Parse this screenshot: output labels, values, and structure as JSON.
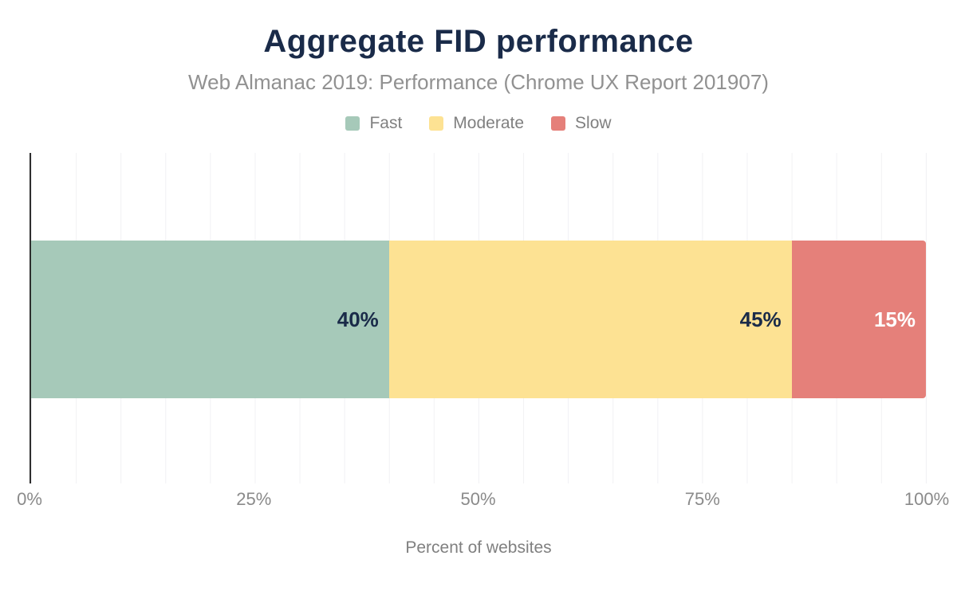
{
  "chart_data": {
    "type": "bar",
    "orientation": "horizontal",
    "stacked": true,
    "title": "Aggregate FID performance",
    "subtitle": "Web Almanac 2019: Performance (Chrome UX Report 201907)",
    "xlabel": "Percent of websites",
    "categories": [
      "Aggregate FID"
    ],
    "series": [
      {
        "name": "Fast",
        "values": [
          40
        ],
        "data_label": "40%",
        "color": "#a6c9b9",
        "label_color": "#1a2b49"
      },
      {
        "name": "Moderate",
        "values": [
          45
        ],
        "data_label": "45%",
        "color": "#fde293",
        "label_color": "#1a2b49"
      },
      {
        "name": "Slow",
        "values": [
          15
        ],
        "data_label": "15%",
        "color": "#e5807a",
        "label_color": "#ffffff"
      }
    ],
    "xlim": [
      0,
      100
    ],
    "x_ticks": [
      "0%",
      "25%",
      "50%",
      "75%",
      "100%"
    ],
    "x_tick_values": [
      0,
      25,
      50,
      75,
      100
    ],
    "grid": {
      "vertical": true,
      "interval_percent": 5,
      "color": "#f1f1f4"
    },
    "legend_position": "top"
  },
  "colors": {
    "title_text": "#1a2b49",
    "subtitle_text": "#919191",
    "tick_text": "#8a8a8a",
    "axis_line": "#2e2e2e",
    "fast": "#a6c9b9",
    "moderate": "#fde293",
    "slow": "#e5807a"
  }
}
